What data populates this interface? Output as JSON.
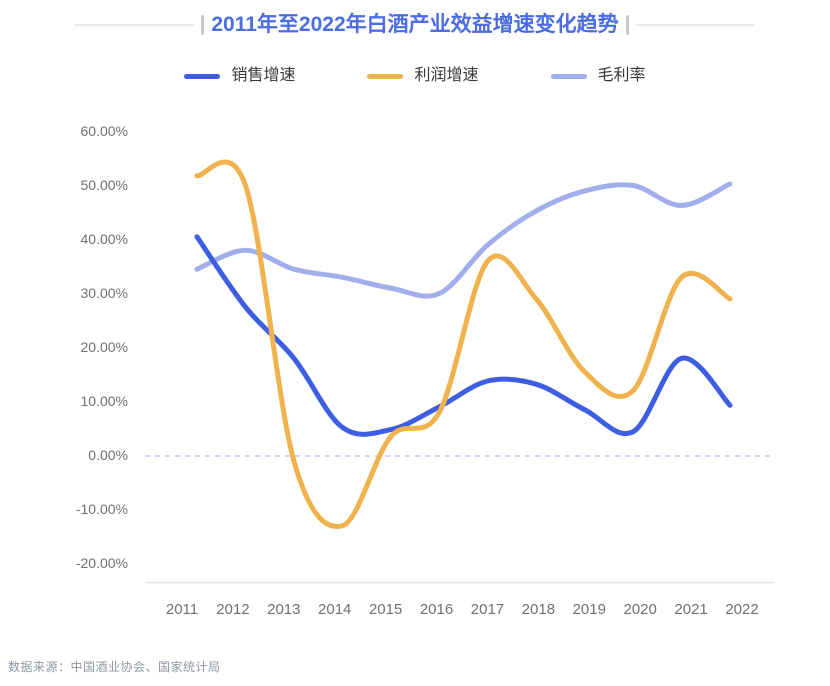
{
  "title": "2011年至2022年白酒产业效益增速变化趋势",
  "legend": {
    "items": [
      {
        "label": "销售增速",
        "color": "#3d5de2"
      },
      {
        "label": "利润增速",
        "color": "#f0b24d"
      },
      {
        "label": "毛利率",
        "color": "#a2adec"
      }
    ]
  },
  "footer": {
    "source": "数据来源：中国酒业协会、国家统计局"
  },
  "colors": {
    "title": "#4a6ce4",
    "axis_text": "#707070",
    "legend_text": "#38383c",
    "footer_text": "#9097a2",
    "zero_line": "#c7cef5",
    "axis_line": "#e8e8eb"
  },
  "chart_data": {
    "type": "line",
    "title": "2011年至2022年白酒产业效益增速变化趋势",
    "categories": [
      "2011",
      "2012",
      "2013",
      "2014",
      "2015",
      "2016",
      "2017",
      "2018",
      "2019",
      "2020",
      "2021",
      "2022"
    ],
    "series": [
      {
        "name": "销售增速",
        "color": "#3d5de2",
        "values": [
          40.5,
          27.5,
          18.0,
          5.2,
          4.8,
          9.0,
          13.8,
          13.2,
          8.5,
          4.4,
          18.0,
          9.3
        ]
      },
      {
        "name": "利润增速",
        "color": "#f0b24d",
        "values": [
          51.8,
          50.0,
          -1.0,
          -13.0,
          3.5,
          8.0,
          36.0,
          29.0,
          15.5,
          12.0,
          33.0,
          29.0
        ]
      },
      {
        "name": "毛利率",
        "color": "#a2adec",
        "values": [
          34.5,
          38.0,
          34.5,
          33.0,
          31.0,
          30.0,
          39.0,
          45.3,
          49.0,
          50.0,
          46.3,
          50.3
        ]
      }
    ],
    "y_ticks": [
      "60.00%",
      "50.00%",
      "40.00%",
      "30.00%",
      "20.00%",
      "10.00%",
      "0.00%",
      "-10.00%",
      "-20.00%"
    ],
    "y_tick_values": [
      60,
      50,
      40,
      30,
      20,
      10,
      0,
      -10,
      -20
    ],
    "ylim": [
      -20,
      60
    ],
    "y_unit": "%",
    "grid": false,
    "zero_line": "dashed",
    "legend_position": "top",
    "smooth": true,
    "xlabel": "",
    "ylabel": ""
  }
}
